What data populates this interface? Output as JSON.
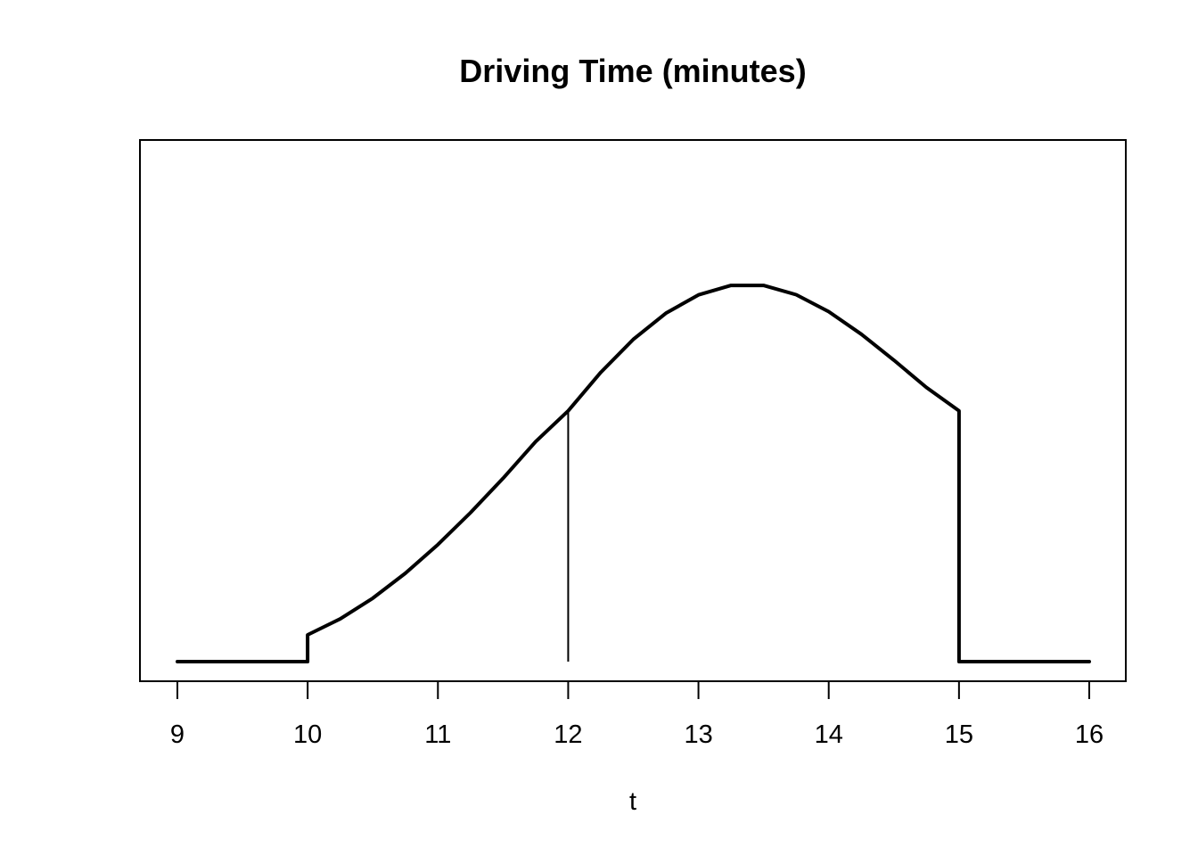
{
  "chart_data": {
    "type": "line",
    "title": "Driving Time (minutes)",
    "xlabel": "t",
    "ylabel": "",
    "xlim": [
      9,
      16
    ],
    "ylim": [
      0,
      1
    ],
    "x_ticks": [
      9,
      10,
      11,
      12,
      13,
      14,
      15,
      16
    ],
    "y_axis_shown": false,
    "grid": false,
    "legend": "none",
    "series": [
      {
        "x": [
          9,
          10,
          10,
          10.25,
          10.5,
          10.75,
          11,
          11.25,
          11.5,
          11.75,
          12,
          12.25,
          12.5,
          12.75,
          13,
          13.25,
          13.5,
          13.75,
          14,
          14.25,
          14.5,
          14.75,
          15,
          15,
          16
        ],
        "y": [
          0,
          0,
          0.0667,
          0.1064,
          0.1581,
          0.2202,
          0.2917,
          0.371,
          0.457,
          0.5483,
          0.625,
          0.7209,
          0.803,
          0.8683,
          0.914,
          0.9376,
          0.9375,
          0.9144,
          0.8722,
          0.8161,
          0.7513,
          0.6833,
          0.625,
          0,
          0
        ],
        "color": "#000000"
      }
    ],
    "annotations": [
      {
        "type": "vline",
        "x": 12,
        "y_from": 0,
        "y_to": 0.625
      }
    ]
  }
}
